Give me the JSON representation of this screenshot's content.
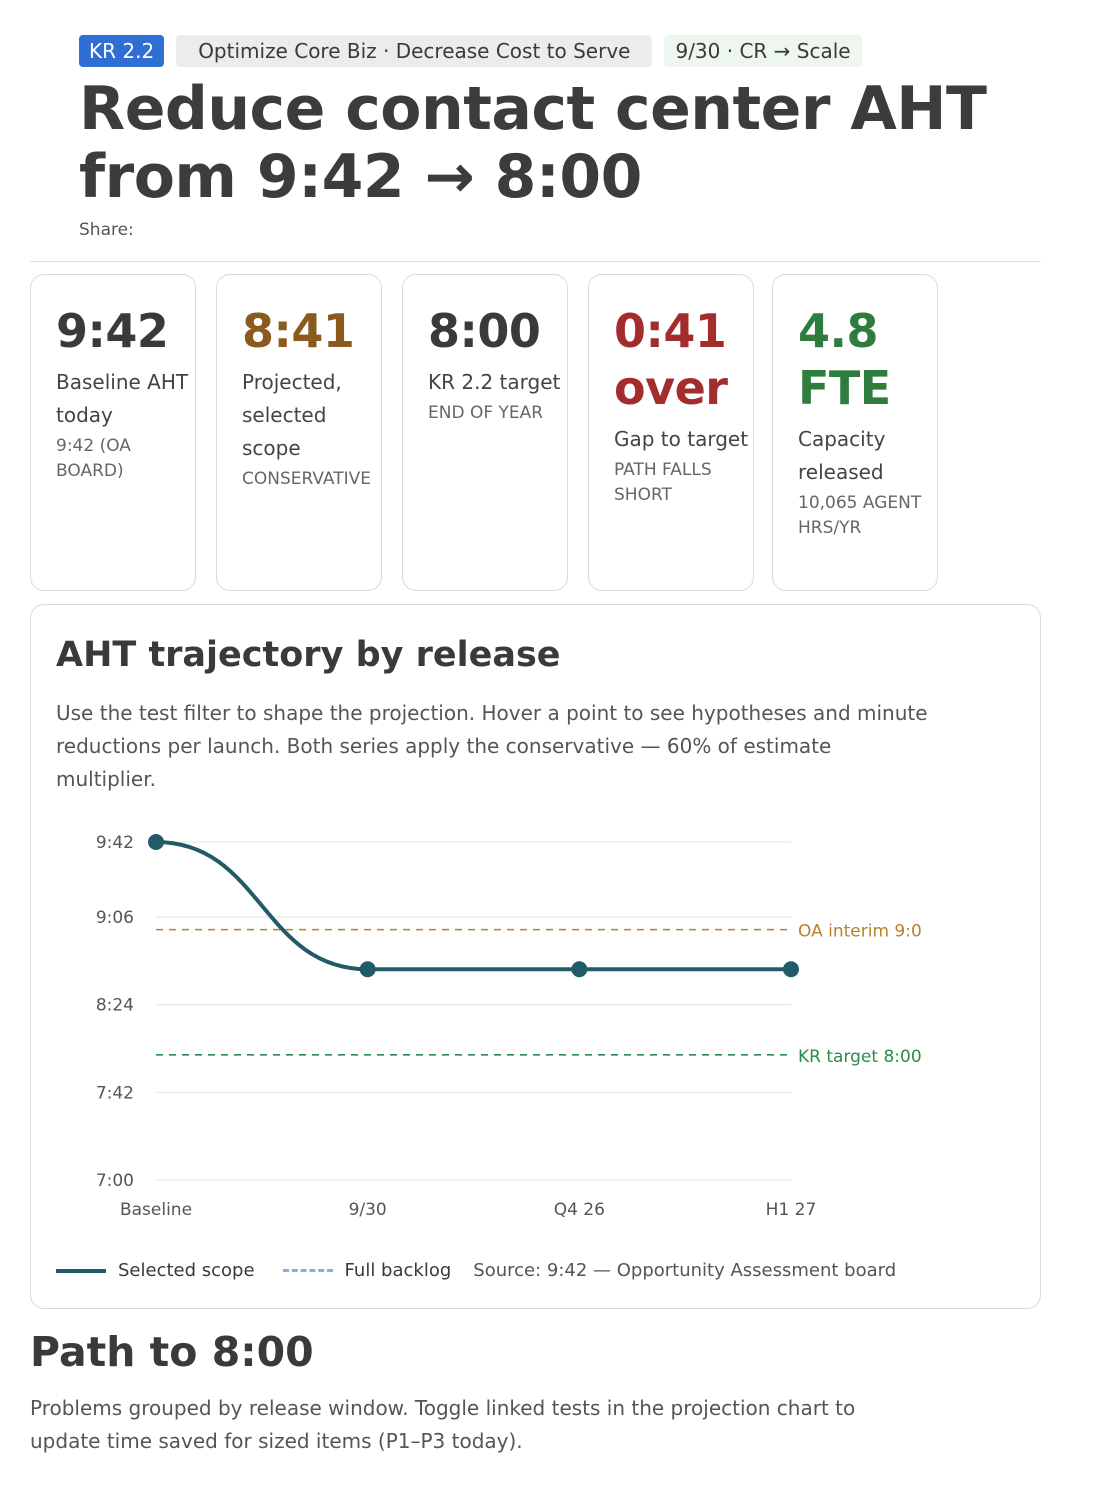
{
  "header": {
    "kr_tag": "KR 2.2",
    "objective_tag": "Optimize Core Biz · Decrease Cost to Serve",
    "date_tag": "9/30 · CR → Scale",
    "title_line1": "Reduce contact center AHT",
    "title_line2": "from 9:42 → 8:00",
    "share_label": "Share:"
  },
  "kpis": [
    {
      "value": "9:42",
      "label": "Baseline AHT today",
      "sub": "9:42 (OA board)",
      "color": "#3a3a3a"
    },
    {
      "value": "8:41",
      "label": "Projected, selected scope",
      "sub": "Conservative",
      "color": "#8a5a1e"
    },
    {
      "value": "8:00",
      "label": "KR 2.2 target",
      "sub": "End of year",
      "color": "#3a3a3a"
    },
    {
      "value": "0:41 over",
      "label": "Gap to target",
      "sub": "Path falls short",
      "color": "#a32d2d"
    },
    {
      "value": "4.8 FTE",
      "label": "Capacity released",
      "sub": "10,065 agent hrs/yr",
      "color": "#2e7d3e"
    }
  ],
  "chart_section": {
    "title": "AHT trajectory by release",
    "description": "Use the test filter to shape the projection. Hover a point to see hypotheses and minute reductions per launch. Both series apply the conservative — 60% of estimate multiplier.",
    "legend_selected": "Selected scope",
    "legend_full": "Full backlog",
    "source": "Source: 9:42 — Opportunity Assessment board"
  },
  "chart_data": {
    "type": "line",
    "categories": [
      "Baseline",
      "9/30",
      "Q4 26",
      "H1 27"
    ],
    "series": [
      {
        "name": "Selected scope",
        "values": [
          582,
          521,
          521,
          521
        ],
        "color": "#235a68"
      }
    ],
    "ylim": [
      420,
      582
    ],
    "yticks": [
      {
        "value": 582,
        "label": "9:42"
      },
      {
        "value": 546,
        "label": "9:06"
      },
      {
        "value": 504,
        "label": "8:24"
      },
      {
        "value": 462,
        "label": "7:42"
      },
      {
        "value": 420,
        "label": "7:00"
      }
    ],
    "reference_lines": [
      {
        "label": "OA interim 9:0",
        "value": 540,
        "color": "#b5822b"
      },
      {
        "label": "KR target 8:00",
        "value": 480,
        "color": "#2e8a4e"
      }
    ],
    "legend_position": "bottom-left",
    "grid": true
  },
  "path_section": {
    "title": "Path to 8:00",
    "description": "Problems grouped by release window. Toggle linked tests in the projection chart to update time saved for sized items (P1–P3 today)."
  }
}
